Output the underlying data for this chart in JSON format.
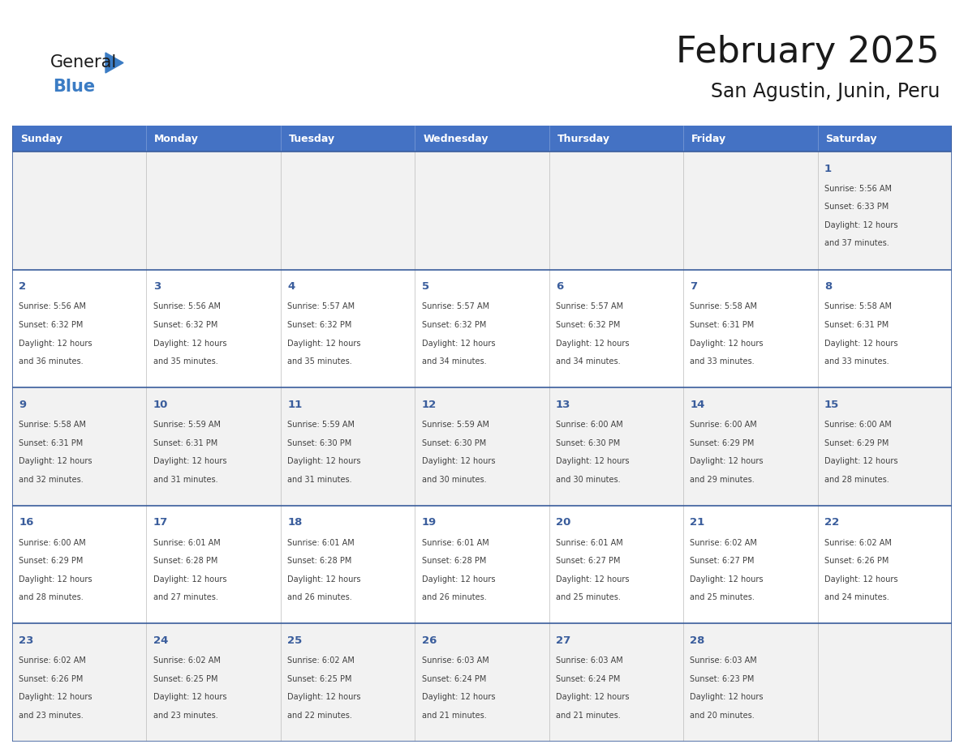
{
  "title": "February 2025",
  "subtitle": "San Agustin, Junin, Peru",
  "header_color": "#4472C4",
  "header_text_color": "#FFFFFF",
  "days_of_week": [
    "Sunday",
    "Monday",
    "Tuesday",
    "Wednesday",
    "Thursday",
    "Friday",
    "Saturday"
  ],
  "cell_bg_week1": "#F2F2F2",
  "cell_bg_week2": "#FFFFFF",
  "cell_bg_week3": "#F2F2F2",
  "cell_bg_week4": "#FFFFFF",
  "cell_bg_week5": "#F2F2F2",
  "cell_border_color": "#3A5D9C",
  "day_number_color": "#3A5D9C",
  "info_text_color": "#404040",
  "title_color": "#1A1A1A",
  "subtitle_color": "#1A1A1A",
  "logo_general_color": "#1A1A1A",
  "logo_blue_color": "#3B7CC4",
  "calendar_data": [
    [
      null,
      null,
      null,
      null,
      null,
      null,
      {
        "day": 1,
        "sunrise": "5:56 AM",
        "sunset": "6:33 PM",
        "daylight": "12 hours",
        "daylight2": "and 37 minutes."
      }
    ],
    [
      {
        "day": 2,
        "sunrise": "5:56 AM",
        "sunset": "6:32 PM",
        "daylight": "12 hours",
        "daylight2": "and 36 minutes."
      },
      {
        "day": 3,
        "sunrise": "5:56 AM",
        "sunset": "6:32 PM",
        "daylight": "12 hours",
        "daylight2": "and 35 minutes."
      },
      {
        "day": 4,
        "sunrise": "5:57 AM",
        "sunset": "6:32 PM",
        "daylight": "12 hours",
        "daylight2": "and 35 minutes."
      },
      {
        "day": 5,
        "sunrise": "5:57 AM",
        "sunset": "6:32 PM",
        "daylight": "12 hours",
        "daylight2": "and 34 minutes."
      },
      {
        "day": 6,
        "sunrise": "5:57 AM",
        "sunset": "6:32 PM",
        "daylight": "12 hours",
        "daylight2": "and 34 minutes."
      },
      {
        "day": 7,
        "sunrise": "5:58 AM",
        "sunset": "6:31 PM",
        "daylight": "12 hours",
        "daylight2": "and 33 minutes."
      },
      {
        "day": 8,
        "sunrise": "5:58 AM",
        "sunset": "6:31 PM",
        "daylight": "12 hours",
        "daylight2": "and 33 minutes."
      }
    ],
    [
      {
        "day": 9,
        "sunrise": "5:58 AM",
        "sunset": "6:31 PM",
        "daylight": "12 hours",
        "daylight2": "and 32 minutes."
      },
      {
        "day": 10,
        "sunrise": "5:59 AM",
        "sunset": "6:31 PM",
        "daylight": "12 hours",
        "daylight2": "and 31 minutes."
      },
      {
        "day": 11,
        "sunrise": "5:59 AM",
        "sunset": "6:30 PM",
        "daylight": "12 hours",
        "daylight2": "and 31 minutes."
      },
      {
        "day": 12,
        "sunrise": "5:59 AM",
        "sunset": "6:30 PM",
        "daylight": "12 hours",
        "daylight2": "and 30 minutes."
      },
      {
        "day": 13,
        "sunrise": "6:00 AM",
        "sunset": "6:30 PM",
        "daylight": "12 hours",
        "daylight2": "and 30 minutes."
      },
      {
        "day": 14,
        "sunrise": "6:00 AM",
        "sunset": "6:29 PM",
        "daylight": "12 hours",
        "daylight2": "and 29 minutes."
      },
      {
        "day": 15,
        "sunrise": "6:00 AM",
        "sunset": "6:29 PM",
        "daylight": "12 hours",
        "daylight2": "and 28 minutes."
      }
    ],
    [
      {
        "day": 16,
        "sunrise": "6:00 AM",
        "sunset": "6:29 PM",
        "daylight": "12 hours",
        "daylight2": "and 28 minutes."
      },
      {
        "day": 17,
        "sunrise": "6:01 AM",
        "sunset": "6:28 PM",
        "daylight": "12 hours",
        "daylight2": "and 27 minutes."
      },
      {
        "day": 18,
        "sunrise": "6:01 AM",
        "sunset": "6:28 PM",
        "daylight": "12 hours",
        "daylight2": "and 26 minutes."
      },
      {
        "day": 19,
        "sunrise": "6:01 AM",
        "sunset": "6:28 PM",
        "daylight": "12 hours",
        "daylight2": "and 26 minutes."
      },
      {
        "day": 20,
        "sunrise": "6:01 AM",
        "sunset": "6:27 PM",
        "daylight": "12 hours",
        "daylight2": "and 25 minutes."
      },
      {
        "day": 21,
        "sunrise": "6:02 AM",
        "sunset": "6:27 PM",
        "daylight": "12 hours",
        "daylight2": "and 25 minutes."
      },
      {
        "day": 22,
        "sunrise": "6:02 AM",
        "sunset": "6:26 PM",
        "daylight": "12 hours",
        "daylight2": "and 24 minutes."
      }
    ],
    [
      {
        "day": 23,
        "sunrise": "6:02 AM",
        "sunset": "6:26 PM",
        "daylight": "12 hours",
        "daylight2": "and 23 minutes."
      },
      {
        "day": 24,
        "sunrise": "6:02 AM",
        "sunset": "6:25 PM",
        "daylight": "12 hours",
        "daylight2": "and 23 minutes."
      },
      {
        "day": 25,
        "sunrise": "6:02 AM",
        "sunset": "6:25 PM",
        "daylight": "12 hours",
        "daylight2": "and 22 minutes."
      },
      {
        "day": 26,
        "sunrise": "6:03 AM",
        "sunset": "6:24 PM",
        "daylight": "12 hours",
        "daylight2": "and 21 minutes."
      },
      {
        "day": 27,
        "sunrise": "6:03 AM",
        "sunset": "6:24 PM",
        "daylight": "12 hours",
        "daylight2": "and 21 minutes."
      },
      {
        "day": 28,
        "sunrise": "6:03 AM",
        "sunset": "6:23 PM",
        "daylight": "12 hours",
        "daylight2": "and 20 minutes."
      },
      null
    ]
  ],
  "week_bg_colors": [
    "#F2F2F2",
    "#FFFFFF",
    "#F2F2F2",
    "#FFFFFF",
    "#F2F2F2"
  ]
}
